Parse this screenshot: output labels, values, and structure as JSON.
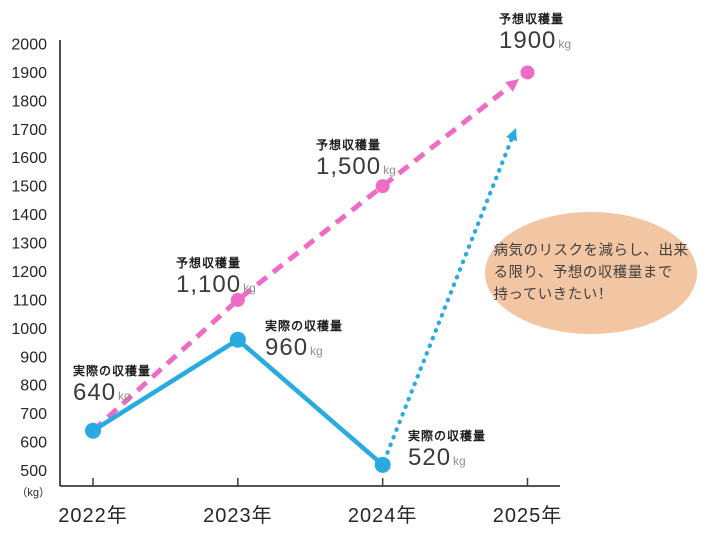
{
  "chart_data": {
    "type": "line",
    "title": "",
    "categories": [
      "2022年",
      "2023年",
      "2024年",
      "2025年"
    ],
    "y_axis": {
      "min": 500,
      "max": 2000,
      "step": 100,
      "unit_label": "（kg）",
      "tick_labels": [
        "2000",
        "1900",
        "1800",
        "1700",
        "1600",
        "1500",
        "1400",
        "1300",
        "1200",
        "1100",
        "1000",
        "900",
        "800",
        "700",
        "600",
        "500"
      ]
    },
    "grid": false,
    "legend": "none",
    "series": [
      {
        "name": "予想収穫量",
        "style": "dashed",
        "color": "#ee6cc6",
        "points": [
          {
            "category": "2022年",
            "value": 640,
            "marker": false
          },
          {
            "category": "2023年",
            "value": 1100,
            "marker": true
          },
          {
            "category": "2024年",
            "value": 1500,
            "marker": true
          },
          {
            "category": "2025年",
            "value": 1900,
            "marker": true
          }
        ],
        "arrow_into_last_point": true
      },
      {
        "name": "実際の収穫量",
        "style": "solid",
        "color": "#29abe2",
        "points": [
          {
            "category": "2022年",
            "value": 640,
            "marker": true
          },
          {
            "category": "2023年",
            "value": 960,
            "marker": true
          },
          {
            "category": "2024年",
            "value": 520,
            "marker": true
          }
        ]
      }
    ],
    "point_labels": [
      {
        "title": "実際の収穫量",
        "value": "640",
        "unit": "kg"
      },
      {
        "title": "予想収穫量",
        "value": "1,100",
        "unit": "kg"
      },
      {
        "title": "実際の収穫量",
        "value": "960",
        "unit": "kg"
      },
      {
        "title": "予想収穫量",
        "value": "1,500",
        "unit": "kg"
      },
      {
        "title": "予想収穫量",
        "value": "1900",
        "unit": "kg"
      },
      {
        "title": "実際の収穫量",
        "value": "520",
        "unit": "kg"
      }
    ],
    "goal_arrow": {
      "style": "dotted",
      "color": "#29abe2",
      "from_category": "2024年",
      "from_value": 520,
      "points_to_value": 1700
    }
  },
  "annotation_bubble": {
    "fill": "#f3c6a3",
    "text": "病気のリスクを減らし、出来る限り、予想の収穫量まで持っていきたい！",
    "lines": [
      "病気のリスクを減らし、出来",
      "る限り、予想の収穫量まで",
      "持っていきたい！"
    ]
  },
  "colors": {
    "actual": "#29abe2",
    "predicted": "#ee6cc6",
    "axis": "#3c3c3c",
    "tick_text": "#262626",
    "bubble_fill": "#f3c6a3",
    "bubble_text": "#3f3f3f"
  }
}
